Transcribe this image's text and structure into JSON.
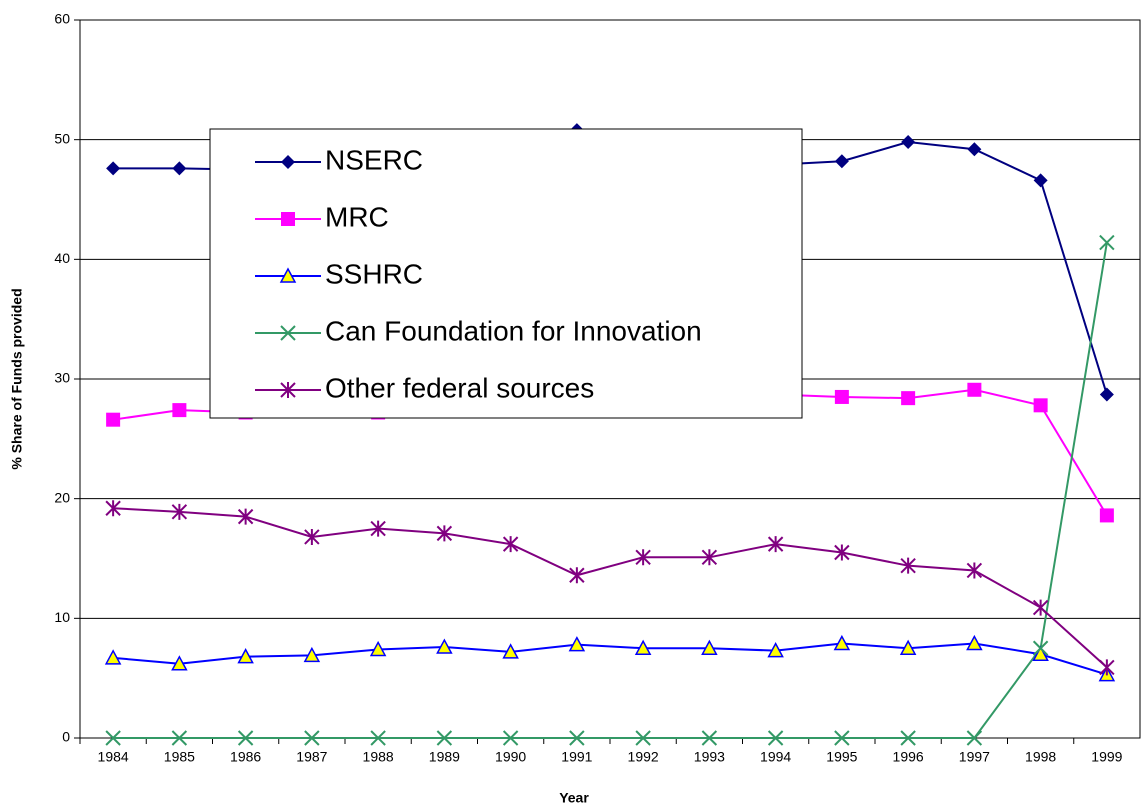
{
  "chart_data": {
    "type": "line",
    "x_label": "Year",
    "y_label": "% Share of Funds provided",
    "categories": [
      "1984",
      "1985",
      "1986",
      "1987",
      "1988",
      "1989",
      "1990",
      "1991",
      "1992",
      "1993",
      "1994",
      "1995",
      "1996",
      "1997",
      "1998",
      "1999"
    ],
    "series": [
      {
        "name": "NSERC",
        "color": "#000080",
        "marker": "diamond",
        "values": [
          47.6,
          47.6,
          47.5,
          47.8,
          48.5,
          49,
          49.5,
          50.8,
          49.5,
          48.5,
          47.9,
          48.2,
          49.8,
          49.2,
          46.6,
          28.7
        ]
      },
      {
        "name": "MRC",
        "color": "#ff00ff",
        "marker": "square",
        "values": [
          26.6,
          27.4,
          27.2,
          27.3,
          27.2,
          27.5,
          28,
          28,
          28.2,
          28.4,
          28.7,
          28.5,
          28.4,
          29.1,
          27.8,
          18.6
        ]
      },
      {
        "name": "SSHRC",
        "color": "#0000ff",
        "marker": "triangle",
        "values": [
          6.7,
          6.2,
          6.8,
          6.9,
          7.4,
          7.6,
          7.2,
          7.8,
          7.5,
          7.5,
          7.3,
          7.9,
          7.5,
          7.9,
          7.0,
          5.3
        ]
      },
      {
        "name": "Can Foundation for Innovation",
        "color": "#339966",
        "marker": "x",
        "values": [
          0,
          0,
          0,
          0,
          0,
          0,
          0,
          0,
          0,
          0,
          0,
          0,
          0,
          0,
          7.5,
          41.4
        ]
      },
      {
        "name": "Other federal sources",
        "color": "#800080",
        "marker": "star",
        "values": [
          19.2,
          18.9,
          18.5,
          16.8,
          17.5,
          17.1,
          16.2,
          13.6,
          15.1,
          15.1,
          16.2,
          15.5,
          14.4,
          14.0,
          10.9,
          5.9
        ]
      }
    ],
    "ylim": [
      0,
      60
    ],
    "yticks": [
      0,
      10,
      20,
      30,
      40,
      50,
      60
    ],
    "grid": true
  }
}
